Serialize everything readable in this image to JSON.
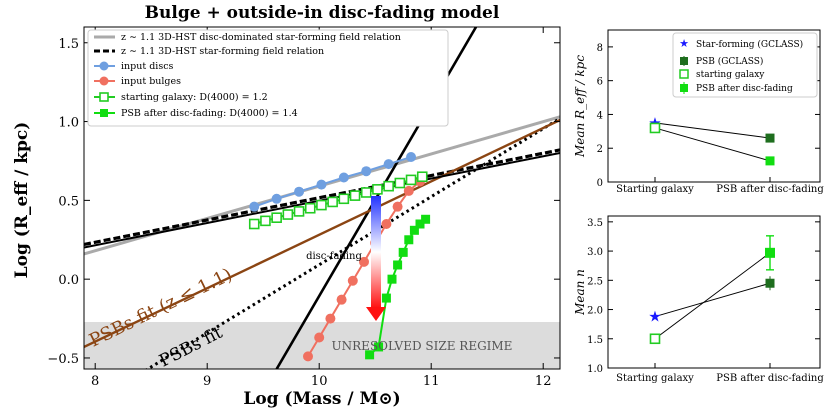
{
  "chart_data": [
    {
      "type": "line",
      "title": "Bulge + outside-in disc-fading model",
      "xlabel": "Log (Mass / M⊙)",
      "ylabel": "Log (R_eff / kpc)",
      "xlim": [
        7.9,
        12.15
      ],
      "ylim": [
        -0.57,
        1.6
      ],
      "xticks": [
        "8",
        "9",
        "10",
        "11",
        "12"
      ],
      "yticks": [
        "−0.5",
        "0.0",
        "0.5",
        "1.0",
        "1.5"
      ],
      "legend": [
        "z ∼ 1.1 3D-HST disc-dominated star-forming field relation",
        "z ∼ 1.1 3D-HST star-forming field relation",
        "input discs",
        "input bulges",
        "starting galaxy: D(4000) = 1.2",
        "PSB after disc-fading: D(4000) = 1.4"
      ],
      "unresolved_region": {
        "ymax": -0.3,
        "label": "UNRESOLVED SIZE REGIME"
      },
      "annotations": {
        "arrow": "disc-fading",
        "psb_fit": "PSBs fit (z ≤ 1.1)",
        "psb_fit_dotted": "PSBs fit"
      },
      "lines": [
        {
          "name": "disc-dominated field relation",
          "x": [
            7.9,
            12.15
          ],
          "y": [
            0.16,
            1.03
          ],
          "color": "#aaaaaa"
        },
        {
          "name": "star-forming field relation",
          "x": [
            7.9,
            12.15
          ],
          "y": [
            0.22,
            0.82
          ],
          "color": "#000000"
        },
        {
          "name": "bulge relation",
          "x": [
            9.62,
            11.4
          ],
          "y": [
            -0.57,
            1.6
          ],
          "color": "#000000"
        },
        {
          "name": "PSBs fit dotted",
          "x": [
            8.4,
            12.15
          ],
          "y": [
            -0.6,
            1.02
          ],
          "color": "#000000"
        },
        {
          "name": "PSBs fit (z<=1.1)",
          "x": [
            7.9,
            12.15
          ],
          "y": [
            -0.43,
            1.01
          ],
          "color": "#8B4513"
        }
      ],
      "series": [
        {
          "name": "input discs",
          "color": "#6f9fe0",
          "x": [
            9.42,
            9.62,
            9.82,
            10.02,
            10.22,
            10.42,
            10.62,
            10.82
          ],
          "y": [
            0.46,
            0.51,
            0.555,
            0.6,
            0.645,
            0.685,
            0.73,
            0.775
          ]
        },
        {
          "name": "input bulges",
          "color": "#f07060",
          "x": [
            9.9,
            10.0,
            10.1,
            10.2,
            10.3,
            10.4,
            10.5,
            10.6,
            10.7,
            10.8,
            10.9
          ],
          "y": [
            -0.49,
            -0.37,
            -0.25,
            -0.13,
            -0.01,
            0.11,
            0.23,
            0.35,
            0.46,
            0.56,
            0.62
          ]
        },
        {
          "name": "starting galaxy: D(4000) = 1.2",
          "color": "#22cc22",
          "x": [
            9.42,
            9.52,
            9.62,
            9.72,
            9.82,
            9.92,
            10.02,
            10.12,
            10.22,
            10.32,
            10.42,
            10.52,
            10.62,
            10.72,
            10.82,
            10.92
          ],
          "y": [
            0.35,
            0.37,
            0.39,
            0.41,
            0.43,
            0.45,
            0.47,
            0.49,
            0.51,
            0.53,
            0.55,
            0.57,
            0.59,
            0.61,
            0.63,
            0.65
          ]
        },
        {
          "name": "PSB after disc-fading: D(4000) = 1.4",
          "color": "#11dd11",
          "x": [
            10.45,
            10.53,
            10.6,
            10.65,
            10.7,
            10.75,
            10.8,
            10.85,
            10.9,
            10.95
          ],
          "y": [
            -0.48,
            -0.43,
            -0.12,
            0.0,
            0.09,
            0.17,
            0.25,
            0.31,
            0.35,
            0.38
          ]
        }
      ]
    },
    {
      "type": "line",
      "ylabel": "Mean R_eff / kpc",
      "categories": [
        "Starting galaxy",
        "PSB after disc-fading"
      ],
      "ylim": [
        0,
        9
      ],
      "yticks": [
        "0",
        "2",
        "4",
        "6",
        "8"
      ],
      "legend": [
        "Star-forming (GCLASS)",
        "PSB (GCLASS)",
        "starting galaxy",
        "PSB after disc-fading"
      ],
      "series": [
        {
          "name": "GCLASS",
          "values": [
            3.5,
            2.6
          ],
          "color": "#000000"
        },
        {
          "name": "model",
          "values": [
            3.2,
            1.25
          ],
          "color": "#22cc22"
        }
      ]
    },
    {
      "type": "line",
      "ylabel": "Mean n",
      "categories": [
        "Starting galaxy",
        "PSB after disc-fading"
      ],
      "ylim": [
        1.0,
        3.6
      ],
      "yticks": [
        "1.0",
        "1.5",
        "2.0",
        "2.5",
        "3.0",
        "3.5"
      ],
      "series": [
        {
          "name": "GCLASS",
          "values": [
            1.88,
            2.45
          ],
          "color": "#000000"
        },
        {
          "name": "model",
          "values": [
            1.5,
            2.97
          ],
          "color": "#22cc22"
        }
      ]
    }
  ]
}
